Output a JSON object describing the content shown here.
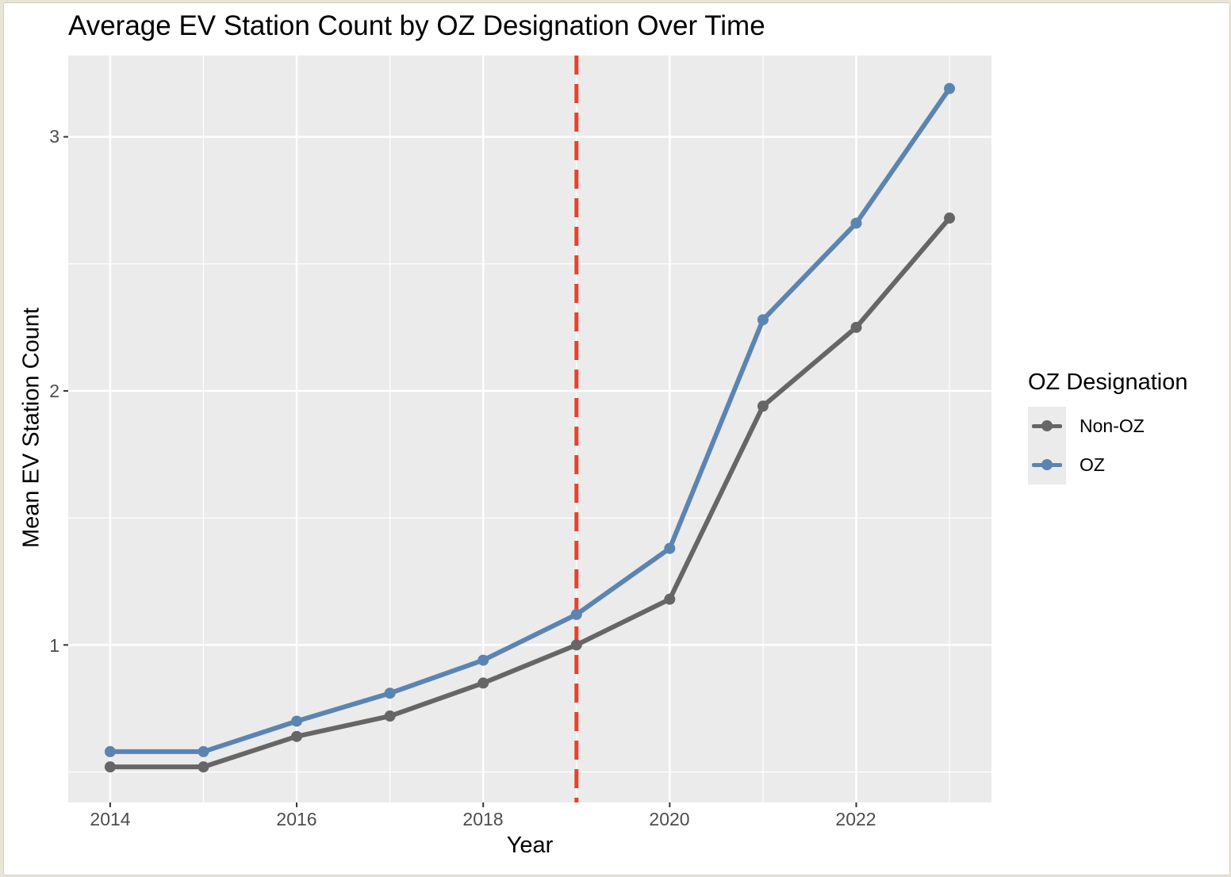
{
  "chart_data": {
    "type": "line",
    "title": "Average EV Station Count by OZ Designation Over Time",
    "xlabel": "Year",
    "ylabel": "Mean EV Station Count",
    "x": [
      2014,
      2015,
      2016,
      2017,
      2018,
      2019,
      2020,
      2021,
      2022,
      2023
    ],
    "x_tick_labels": [
      "2014",
      "2016",
      "2018",
      "2020",
      "2022"
    ],
    "y_tick_labels": [
      "1",
      "2",
      "3"
    ],
    "xlim": [
      2013.55,
      2023.45
    ],
    "ylim": [
      0.38,
      3.32
    ],
    "grid": true,
    "legend": {
      "title": "OZ Designation",
      "placement": "right"
    },
    "series": [
      {
        "name": "Non-OZ",
        "color": "#666666",
        "values": [
          0.52,
          0.52,
          0.64,
          0.72,
          0.85,
          1.0,
          1.18,
          1.94,
          2.25,
          2.68
        ]
      },
      {
        "name": "OZ",
        "color": "#5b84b1",
        "values": [
          0.58,
          0.58,
          0.7,
          0.81,
          0.94,
          1.12,
          1.38,
          2.28,
          2.66,
          3.19
        ]
      }
    ],
    "reference_line": {
      "x": 2019,
      "color": "#e8412c",
      "style": "dashed"
    }
  }
}
